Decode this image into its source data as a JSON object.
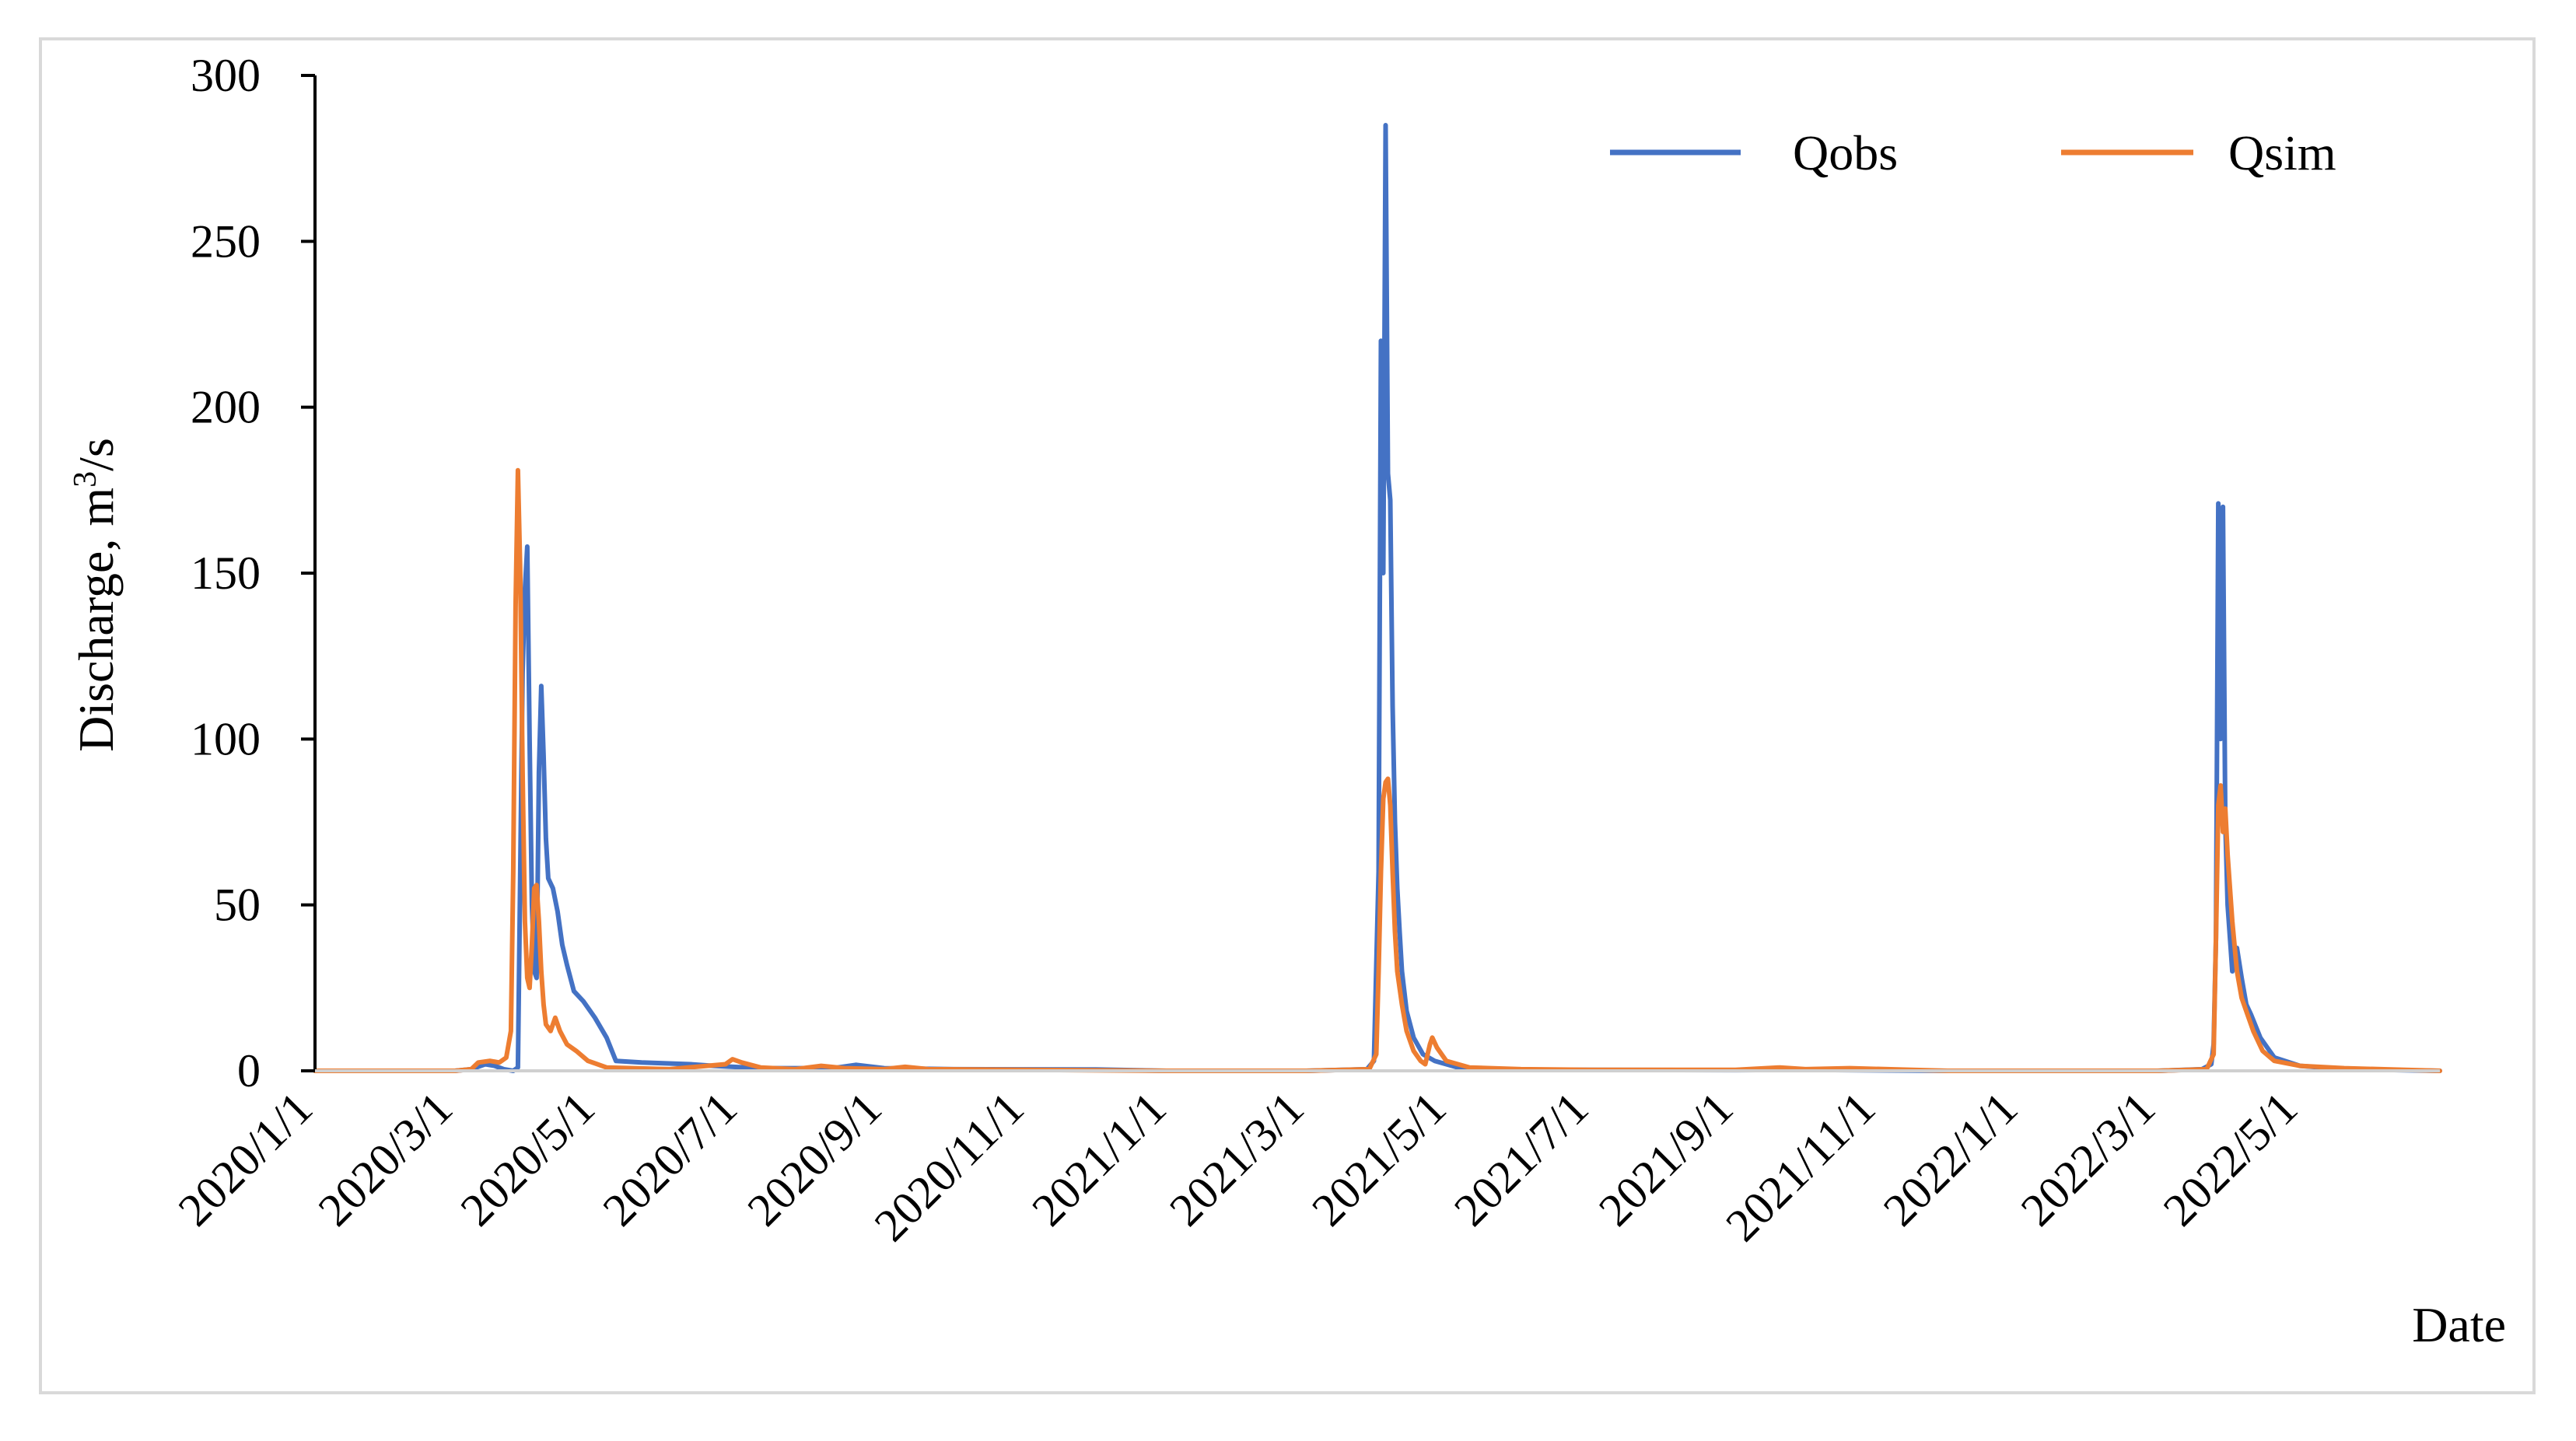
{
  "chart_data": {
    "type": "line",
    "title": "",
    "xlabel": "Date",
    "ylabel": "Discharge, m³/s",
    "ylabel_main": "Discharge, m",
    "ylabel_sup": "3",
    "ylabel_tail": "/s",
    "ylim": [
      0,
      300
    ],
    "yticks": [
      0,
      50,
      100,
      150,
      200,
      250,
      300
    ],
    "xlim": [
      "2020-01-01",
      "2022-06-30"
    ],
    "xticks": [
      {
        "date": "2020-01-01",
        "label": "2020/1/1"
      },
      {
        "date": "2020-03-01",
        "label": "2020/3/1"
      },
      {
        "date": "2020-05-01",
        "label": "2020/5/1"
      },
      {
        "date": "2020-07-01",
        "label": "2020/7/1"
      },
      {
        "date": "2020-09-01",
        "label": "2020/9/1"
      },
      {
        "date": "2020-11-01",
        "label": "2020/11/1"
      },
      {
        "date": "2021-01-01",
        "label": "2021/1/1"
      },
      {
        "date": "2021-03-01",
        "label": "2021/3/1"
      },
      {
        "date": "2021-05-01",
        "label": "2021/5/1"
      },
      {
        "date": "2021-07-01",
        "label": "2021/7/1"
      },
      {
        "date": "2021-09-01",
        "label": "2021/9/1"
      },
      {
        "date": "2021-11-01",
        "label": "2021/11/1"
      },
      {
        "date": "2022-01-01",
        "label": "2022/1/1"
      },
      {
        "date": "2022-03-01",
        "label": "2022/3/1"
      },
      {
        "date": "2022-05-01",
        "label": "2022/5/1"
      }
    ],
    "grid": false,
    "legend_position": "top-right",
    "series": [
      {
        "name": "Qobs",
        "color": "#4472C4",
        "points": [
          [
            "2020-01-01",
            0
          ],
          [
            "2020-03-01",
            0
          ],
          [
            "2020-03-08",
            0.5
          ],
          [
            "2020-03-14",
            2.0
          ],
          [
            "2020-03-18",
            1.5
          ],
          [
            "2020-03-22",
            0.5
          ],
          [
            "2020-03-26",
            0
          ],
          [
            "2020-03-28",
            1
          ],
          [
            "2020-03-29",
            60
          ],
          [
            "2020-03-30",
            120
          ],
          [
            "2020-03-31",
            145
          ],
          [
            "2020-04-01",
            158
          ],
          [
            "2020-04-02",
            100
          ],
          [
            "2020-04-03",
            50
          ],
          [
            "2020-04-04",
            30
          ],
          [
            "2020-04-05",
            28
          ],
          [
            "2020-04-06",
            90
          ],
          [
            "2020-04-07",
            116
          ],
          [
            "2020-04-08",
            95
          ],
          [
            "2020-04-09",
            70
          ],
          [
            "2020-04-10",
            58
          ],
          [
            "2020-04-12",
            55
          ],
          [
            "2020-04-14",
            48
          ],
          [
            "2020-04-16",
            38
          ],
          [
            "2020-04-18",
            32
          ],
          [
            "2020-04-21",
            24
          ],
          [
            "2020-04-25",
            21
          ],
          [
            "2020-04-30",
            16
          ],
          [
            "2020-05-05",
            10
          ],
          [
            "2020-05-09",
            3
          ],
          [
            "2020-05-20",
            2.5
          ],
          [
            "2020-06-10",
            2
          ],
          [
            "2020-06-20",
            1.5
          ],
          [
            "2020-07-10",
            0.8
          ],
          [
            "2020-08-10",
            0.8
          ],
          [
            "2020-08-20",
            1.8
          ],
          [
            "2020-09-01",
            0.8
          ],
          [
            "2020-10-01",
            0.5
          ],
          [
            "2020-12-01",
            0.4
          ],
          [
            "2020-12-31",
            0
          ],
          [
            "2021-03-01",
            0
          ],
          [
            "2021-03-27",
            0.5
          ],
          [
            "2021-03-30",
            3
          ],
          [
            "2021-04-01",
            60
          ],
          [
            "2021-04-02",
            220
          ],
          [
            "2021-04-03",
            150
          ],
          [
            "2021-04-04",
            285
          ],
          [
            "2021-04-05",
            180
          ],
          [
            "2021-04-06",
            172
          ],
          [
            "2021-04-07",
            110
          ],
          [
            "2021-04-08",
            75
          ],
          [
            "2021-04-09",
            55
          ],
          [
            "2021-04-10",
            42
          ],
          [
            "2021-04-11",
            30
          ],
          [
            "2021-04-13",
            18
          ],
          [
            "2021-04-16",
            10
          ],
          [
            "2021-04-20",
            5
          ],
          [
            "2021-04-25",
            3
          ],
          [
            "2021-05-05",
            1
          ],
          [
            "2021-06-01",
            0.3
          ],
          [
            "2021-09-01",
            0.2
          ],
          [
            "2021-10-01",
            0.3
          ],
          [
            "2021-12-01",
            0
          ],
          [
            "2022-03-01",
            0
          ],
          [
            "2022-03-20",
            0.5
          ],
          [
            "2022-03-24",
            2
          ],
          [
            "2022-03-25",
            8
          ],
          [
            "2022-03-26",
            40
          ],
          [
            "2022-03-27",
            171
          ],
          [
            "2022-03-28",
            100
          ],
          [
            "2022-03-29",
            170
          ],
          [
            "2022-03-30",
            75
          ],
          [
            "2022-03-31",
            50
          ],
          [
            "2022-04-01",
            40
          ],
          [
            "2022-04-02",
            30
          ],
          [
            "2022-04-04",
            37
          ],
          [
            "2022-04-06",
            28
          ],
          [
            "2022-04-08",
            20
          ],
          [
            "2022-04-10",
            17
          ],
          [
            "2022-04-14",
            10
          ],
          [
            "2022-04-20",
            4
          ],
          [
            "2022-05-01",
            1.5
          ],
          [
            "2022-05-20",
            0.5
          ],
          [
            "2022-06-30",
            0
          ]
        ]
      },
      {
        "name": "Qsim",
        "color": "#ED7D31",
        "points": [
          [
            "2020-01-01",
            0
          ],
          [
            "2020-03-01",
            0
          ],
          [
            "2020-03-08",
            0.5
          ],
          [
            "2020-03-11",
            2.5
          ],
          [
            "2020-03-16",
            3
          ],
          [
            "2020-03-20",
            2.5
          ],
          [
            "2020-03-23",
            4
          ],
          [
            "2020-03-25",
            12
          ],
          [
            "2020-03-26",
            60
          ],
          [
            "2020-03-27",
            140
          ],
          [
            "2020-03-28",
            181
          ],
          [
            "2020-03-29",
            150
          ],
          [
            "2020-03-30",
            90
          ],
          [
            "2020-03-31",
            45
          ],
          [
            "2020-04-01",
            28
          ],
          [
            "2020-04-02",
            25
          ],
          [
            "2020-04-03",
            38
          ],
          [
            "2020-04-04",
            55
          ],
          [
            "2020-04-05",
            56
          ],
          [
            "2020-04-06",
            45
          ],
          [
            "2020-04-07",
            30
          ],
          [
            "2020-04-08",
            20
          ],
          [
            "2020-04-09",
            14
          ],
          [
            "2020-04-11",
            12
          ],
          [
            "2020-04-13",
            16
          ],
          [
            "2020-04-15",
            12
          ],
          [
            "2020-04-18",
            8
          ],
          [
            "2020-04-22",
            6
          ],
          [
            "2020-04-27",
            3
          ],
          [
            "2020-05-05",
            1
          ],
          [
            "2020-06-01",
            0.5
          ],
          [
            "2020-06-25",
            2
          ],
          [
            "2020-06-28",
            3.5
          ],
          [
            "2020-07-02",
            2.5
          ],
          [
            "2020-07-10",
            1
          ],
          [
            "2020-07-25",
            0.5
          ],
          [
            "2020-08-05",
            1.5
          ],
          [
            "2020-08-15",
            0.8
          ],
          [
            "2020-09-01",
            0.5
          ],
          [
            "2020-09-10",
            1.2
          ],
          [
            "2020-09-20",
            0.5
          ],
          [
            "2020-12-31",
            0
          ],
          [
            "2021-03-01",
            0
          ],
          [
            "2021-03-28",
            0.5
          ],
          [
            "2021-03-31",
            5
          ],
          [
            "2021-04-01",
            30
          ],
          [
            "2021-04-02",
            60
          ],
          [
            "2021-04-03",
            82
          ],
          [
            "2021-04-04",
            87
          ],
          [
            "2021-04-05",
            88
          ],
          [
            "2021-04-06",
            80
          ],
          [
            "2021-04-07",
            60
          ],
          [
            "2021-04-08",
            42
          ],
          [
            "2021-04-09",
            30
          ],
          [
            "2021-04-11",
            20
          ],
          [
            "2021-04-13",
            12
          ],
          [
            "2021-04-16",
            6
          ],
          [
            "2021-04-19",
            3
          ],
          [
            "2021-04-21",
            2
          ],
          [
            "2021-04-23",
            8
          ],
          [
            "2021-04-24",
            10
          ],
          [
            "2021-04-26",
            7
          ],
          [
            "2021-04-30",
            3
          ],
          [
            "2021-05-10",
            1
          ],
          [
            "2021-06-01",
            0.5
          ],
          [
            "2021-07-01",
            0.3
          ],
          [
            "2021-09-01",
            0.3
          ],
          [
            "2021-09-20",
            1
          ],
          [
            "2021-10-01",
            0.5
          ],
          [
            "2021-10-20",
            0.8
          ],
          [
            "2021-12-01",
            0
          ],
          [
            "2022-03-01",
            0
          ],
          [
            "2022-03-22",
            0.5
          ],
          [
            "2022-03-25",
            5
          ],
          [
            "2022-03-26",
            40
          ],
          [
            "2022-03-27",
            80
          ],
          [
            "2022-03-28",
            86
          ],
          [
            "2022-03-29",
            72
          ],
          [
            "2022-03-30",
            79
          ],
          [
            "2022-03-31",
            65
          ],
          [
            "2022-04-02",
            45
          ],
          [
            "2022-04-04",
            30
          ],
          [
            "2022-04-06",
            22
          ],
          [
            "2022-04-08",
            18
          ],
          [
            "2022-04-11",
            12
          ],
          [
            "2022-04-15",
            6
          ],
          [
            "2022-04-20",
            3
          ],
          [
            "2022-05-01",
            1.5
          ],
          [
            "2022-05-20",
            0.8
          ],
          [
            "2022-06-30",
            0
          ]
        ]
      }
    ]
  }
}
